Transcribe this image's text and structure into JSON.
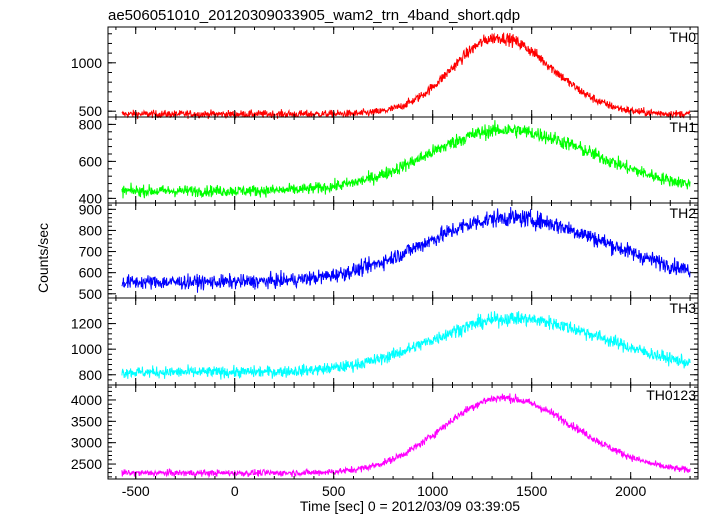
{
  "chart_data": {
    "type": "line",
    "title": "ae506051010_20120309033905_wam2_trn_4band_short.qdp",
    "xlabel": "Time [sec] 0 = 2012/03/09 03:39:05",
    "ylabel": "Counts/sec",
    "xlim": [
      -640,
      2340
    ],
    "x_ticks": [
      -500,
      0,
      500,
      1000,
      1500,
      2000
    ],
    "x_start": -570,
    "x_end": 2300,
    "grid": false,
    "panels": [
      {
        "name": "TH0",
        "color": "#ff0000",
        "ylim": [
          440,
          1370
        ],
        "y_ticks": [
          500,
          1000
        ],
        "baseline": 470,
        "peak": 1260,
        "peak_time": 1330,
        "width_rise": 230,
        "width_fall": 270,
        "noise": 28
      },
      {
        "name": "TH1",
        "color": "#00ff00",
        "ylim": [
          375,
          840
        ],
        "y_ticks": [
          400,
          600,
          800
        ],
        "baseline": 440,
        "peak": 770,
        "peak_time": 1360,
        "width_rise": 380,
        "width_fall": 450,
        "noise": 22
      },
      {
        "name": "TH2",
        "color": "#0000ff",
        "ylim": [
          480,
          930
        ],
        "y_ticks": [
          500,
          600,
          700,
          800,
          900
        ],
        "baseline": 555,
        "peak": 860,
        "peak_time": 1380,
        "width_rise": 420,
        "width_fall": 500,
        "noise": 24
      },
      {
        "name": "TH3",
        "color": "#00ffff",
        "ylim": [
          720,
          1400
        ],
        "y_ticks": [
          800,
          1000,
          1200
        ],
        "baseline": 820,
        "peak": 1240,
        "peak_time": 1400,
        "width_rise": 400,
        "width_fall": 480,
        "noise": 32
      },
      {
        "name": "TH0123",
        "color": "#ff00ff",
        "ylim": [
          2150,
          4350
        ],
        "y_ticks": [
          2500,
          3000,
          3500,
          4000
        ],
        "baseline": 2290,
        "peak": 4050,
        "peak_time": 1350,
        "width_rise": 300,
        "width_fall": 370,
        "noise": 55
      }
    ]
  }
}
